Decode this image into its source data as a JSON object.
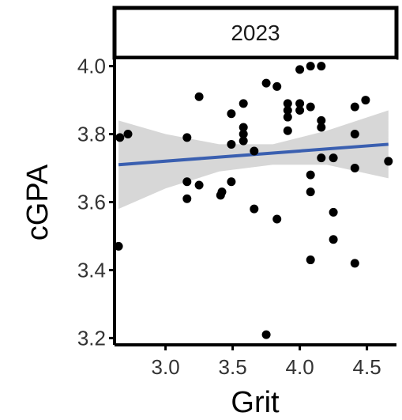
{
  "chart_data": {
    "type": "scatter",
    "facet_label": "2023",
    "xlabel": "Grit",
    "ylabel": "cGPA",
    "xlim": [
      2.62,
      4.72
    ],
    "ylim": [
      3.18,
      4.02
    ],
    "x_ticks": [
      3.0,
      3.5,
      4.0,
      4.5
    ],
    "x_tick_labels": [
      "3.0",
      "3.5",
      "4.0",
      "4.5"
    ],
    "y_ticks": [
      3.2,
      3.4,
      3.6,
      3.8,
      4.0
    ],
    "y_tick_labels": [
      "3.2",
      "3.4",
      "3.6",
      "3.8",
      "4.0"
    ],
    "grid": false,
    "point_color": "#000000",
    "line_color": "#3a5fb0",
    "band_color": "#bdbdbd",
    "points": [
      {
        "x": 2.65,
        "y": 3.47
      },
      {
        "x": 2.66,
        "y": 3.79
      },
      {
        "x": 2.72,
        "y": 3.8
      },
      {
        "x": 3.16,
        "y": 3.79
      },
      {
        "x": 3.16,
        "y": 3.66
      },
      {
        "x": 3.16,
        "y": 3.61
      },
      {
        "x": 3.25,
        "y": 3.91
      },
      {
        "x": 3.25,
        "y": 3.65
      },
      {
        "x": 3.41,
        "y": 3.62
      },
      {
        "x": 3.42,
        "y": 3.63
      },
      {
        "x": 3.49,
        "y": 3.86
      },
      {
        "x": 3.49,
        "y": 3.77
      },
      {
        "x": 3.49,
        "y": 3.66
      },
      {
        "x": 3.58,
        "y": 3.89
      },
      {
        "x": 3.58,
        "y": 3.82
      },
      {
        "x": 3.58,
        "y": 3.8
      },
      {
        "x": 3.58,
        "y": 3.78
      },
      {
        "x": 3.66,
        "y": 3.75
      },
      {
        "x": 3.66,
        "y": 3.58
      },
      {
        "x": 3.75,
        "y": 3.95
      },
      {
        "x": 3.75,
        "y": 3.21
      },
      {
        "x": 3.83,
        "y": 3.94
      },
      {
        "x": 3.83,
        "y": 3.55
      },
      {
        "x": 3.91,
        "y": 3.89
      },
      {
        "x": 3.91,
        "y": 3.87
      },
      {
        "x": 3.91,
        "y": 3.85
      },
      {
        "x": 3.91,
        "y": 3.81
      },
      {
        "x": 4.0,
        "y": 3.99
      },
      {
        "x": 4.0,
        "y": 3.89
      },
      {
        "x": 4.0,
        "y": 3.87
      },
      {
        "x": 4.08,
        "y": 4.0
      },
      {
        "x": 4.08,
        "y": 3.88
      },
      {
        "x": 4.08,
        "y": 3.68
      },
      {
        "x": 4.08,
        "y": 3.63
      },
      {
        "x": 4.08,
        "y": 3.43
      },
      {
        "x": 4.16,
        "y": 4.0
      },
      {
        "x": 4.16,
        "y": 3.84
      },
      {
        "x": 4.16,
        "y": 3.82
      },
      {
        "x": 4.16,
        "y": 3.73
      },
      {
        "x": 4.25,
        "y": 3.73
      },
      {
        "x": 4.25,
        "y": 3.57
      },
      {
        "x": 4.25,
        "y": 3.49
      },
      {
        "x": 4.41,
        "y": 3.88
      },
      {
        "x": 4.41,
        "y": 3.8
      },
      {
        "x": 4.41,
        "y": 3.7
      },
      {
        "x": 4.41,
        "y": 3.42
      },
      {
        "x": 4.49,
        "y": 3.9
      },
      {
        "x": 4.66,
        "y": 3.72
      }
    ],
    "trend_line": {
      "x": [
        2.65,
        4.66
      ],
      "y": [
        3.71,
        3.77
      ]
    },
    "confidence_band": {
      "x": [
        2.65,
        3.0,
        3.4,
        3.8,
        4.2,
        4.66
      ],
      "upper": [
        3.84,
        3.8,
        3.77,
        3.77,
        3.81,
        3.87
      ],
      "lower": [
        3.58,
        3.64,
        3.69,
        3.71,
        3.71,
        3.67
      ]
    }
  }
}
